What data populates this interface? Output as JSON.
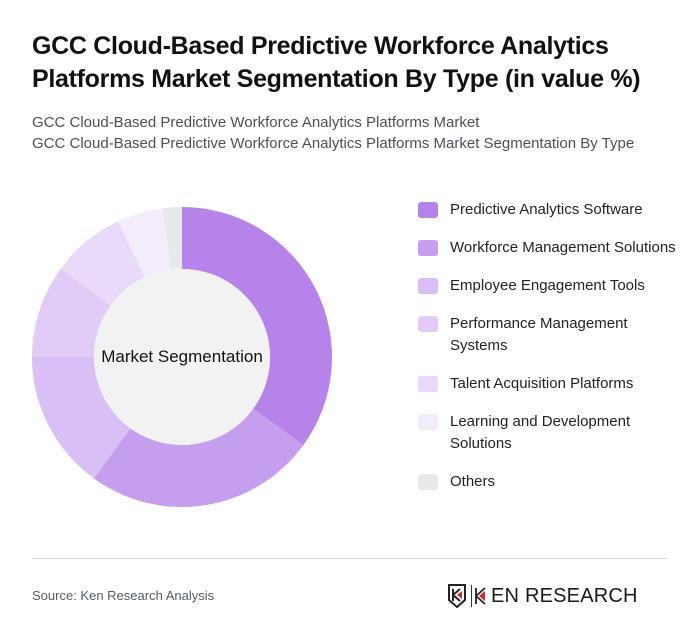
{
  "header": {
    "title": "GCC Cloud-Based Predictive Workforce Analytics Platforms Market Segmentation By Type (in value %)",
    "subtitle_line1": "GCC Cloud-Based Predictive Workforce Analytics Platforms Market",
    "subtitle_line2": "GCC Cloud-Based Predictive Workforce Analytics Platforms Market Segmentation By Type"
  },
  "chart": {
    "center_label": "Market Segmentation"
  },
  "legend": {
    "items": [
      {
        "label": "Predictive Analytics Software",
        "color": "#B683EA"
      },
      {
        "label": "Workforce Management Solutions",
        "color": "#C69EEE"
      },
      {
        "label": "Employee Engagement Tools",
        "color": "#D8BFF5"
      },
      {
        "label": "Performance Management Systems",
        "color": "#E0CCF6"
      },
      {
        "label": "Talent Acquisition Platforms",
        "color": "#E9DAF9"
      },
      {
        "label": "Learning and Development Solutions",
        "color": "#F3ECFB"
      },
      {
        "label": "Others",
        "color": "#E9E9E9"
      }
    ]
  },
  "footer": {
    "source": "Source: Ken Research Analysis",
    "logo_text": "KEN RESEARCH"
  },
  "chart_data": {
    "type": "pie",
    "subtype": "donut",
    "title": "GCC Cloud-Based Predictive Workforce Analytics Platforms Market Segmentation By Type (in value %)",
    "center_label": "Market Segmentation",
    "categories": [
      "Predictive Analytics Software",
      "Workforce Management Solutions",
      "Employee Engagement Tools",
      "Performance Management Systems",
      "Talent Acquisition Platforms",
      "Learning and Development Solutions",
      "Others"
    ],
    "values": [
      35,
      25,
      15,
      10,
      8,
      5,
      2
    ],
    "colors": [
      "#B683EA",
      "#C69EEE",
      "#D8BFF5",
      "#E0CCF6",
      "#E9DAF9",
      "#F3ECFB",
      "#E9E9E9"
    ],
    "unit": "%",
    "start_angle": "12 o'clock, clockwise",
    "legend_position": "right"
  }
}
